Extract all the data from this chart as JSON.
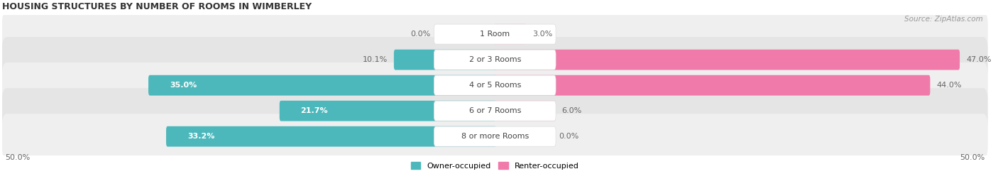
{
  "title": "HOUSING STRUCTURES BY NUMBER OF ROOMS IN WIMBERLEY",
  "source": "Source: ZipAtlas.com",
  "categories": [
    "1 Room",
    "2 or 3 Rooms",
    "4 or 5 Rooms",
    "6 or 7 Rooms",
    "8 or more Rooms"
  ],
  "owner_values": [
    0.0,
    10.1,
    35.0,
    21.7,
    33.2
  ],
  "renter_values": [
    3.0,
    47.0,
    44.0,
    6.0,
    0.0
  ],
  "owner_color": "#4db8bc",
  "renter_color": "#f07aaa",
  "renter_color_light": "#f5b8d0",
  "row_bg_colors": [
    "#efefef",
    "#e5e5e5",
    "#efefef",
    "#e5e5e5",
    "#efefef"
  ],
  "axis_limit": 50.0,
  "label_fontsize": 8,
  "category_fontsize": 8,
  "title_fontsize": 9,
  "source_fontsize": 7.5
}
